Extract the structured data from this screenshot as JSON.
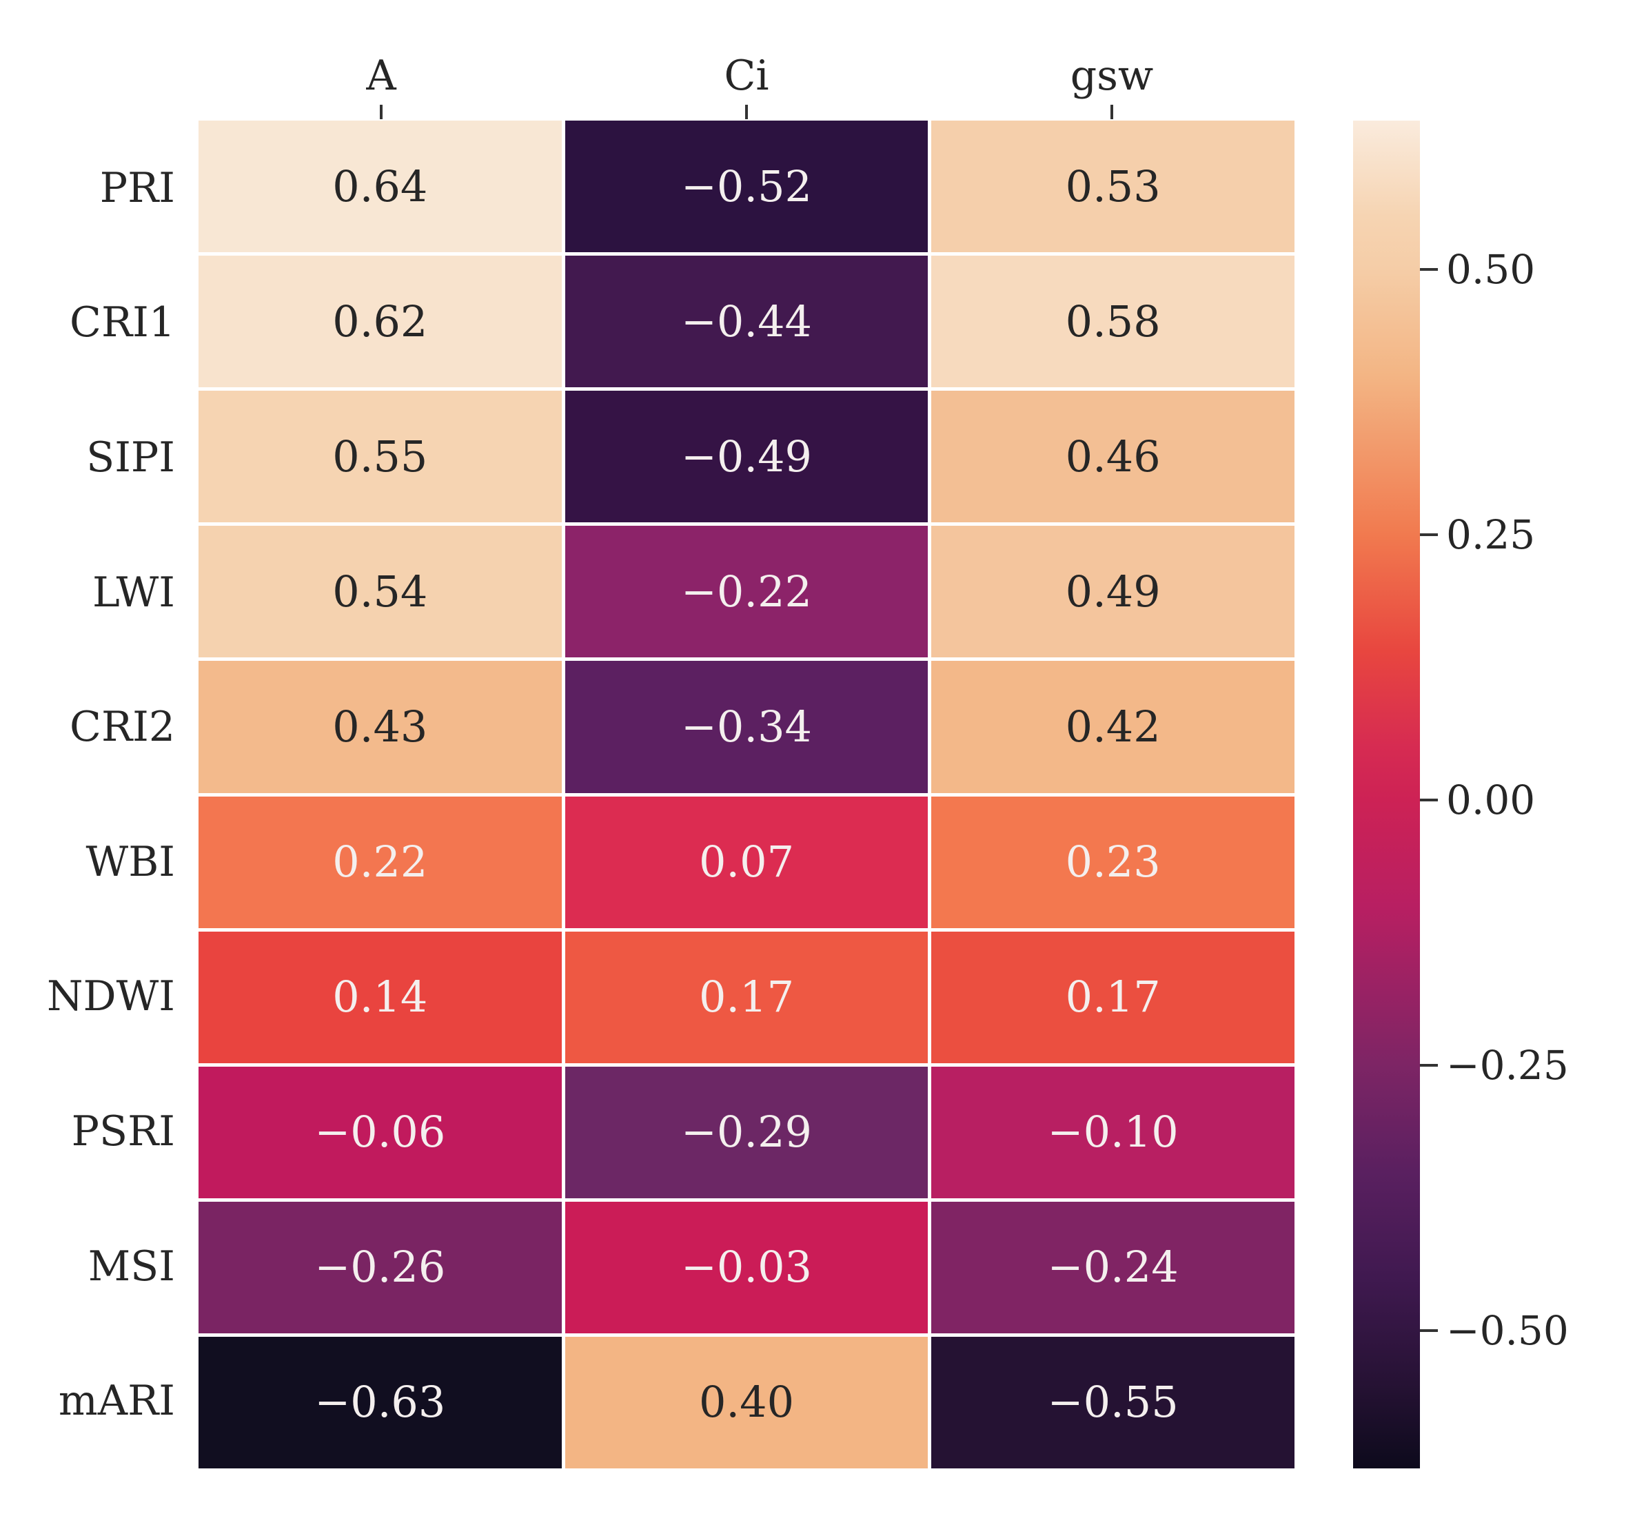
{
  "chart_data": {
    "type": "heatmap",
    "title": "",
    "colormap": "rocket",
    "rows": [
      "PRI",
      "CRI1",
      "SIPI",
      "LWI",
      "CRI2",
      "WBI",
      "NDWI",
      "PSRI",
      "MSI",
      "mARI"
    ],
    "columns": [
      "A",
      "Ci",
      "gsw"
    ],
    "values": [
      [
        0.64,
        -0.52,
        0.53
      ],
      [
        0.62,
        -0.44,
        0.58
      ],
      [
        0.55,
        -0.49,
        0.46
      ],
      [
        0.54,
        -0.22,
        0.49
      ],
      [
        0.43,
        -0.34,
        0.42
      ],
      [
        0.22,
        0.07,
        0.23
      ],
      [
        0.14,
        0.17,
        0.17
      ],
      [
        -0.06,
        -0.29,
        -0.1
      ],
      [
        -0.26,
        -0.03,
        -0.24
      ],
      [
        -0.63,
        0.4,
        -0.55
      ]
    ],
    "cell_labels": [
      [
        "0.64",
        "−0.52",
        "0.53"
      ],
      [
        "0.62",
        "−0.44",
        "0.58"
      ],
      [
        "0.55",
        "−0.49",
        "0.46"
      ],
      [
        "0.54",
        "−0.22",
        "0.49"
      ],
      [
        "0.43",
        "−0.34",
        "0.42"
      ],
      [
        "0.22",
        "0.07",
        "0.23"
      ],
      [
        "0.14",
        "0.17",
        "0.17"
      ],
      [
        "−0.06",
        "−0.29",
        "−0.10"
      ],
      [
        "−0.26",
        "−0.03",
        "−0.24"
      ],
      [
        "−0.63",
        "0.40",
        "−0.55"
      ]
    ],
    "cell_colors": [
      [
        "#f8e7d4",
        "#2c1240",
        "#f5cfab"
      ],
      [
        "#f8e3cd",
        "#42194f",
        "#f7dabe"
      ],
      [
        "#f6d4b2",
        "#351345",
        "#f3bf94"
      ],
      [
        "#f5d2af",
        "#8c2369",
        "#f4c59d"
      ],
      [
        "#f3ba8c",
        "#5c2061",
        "#f3b889"
      ],
      [
        "#f37650",
        "#dc2c51",
        "#f3784f"
      ],
      [
        "#e9443f",
        "#ee5843",
        "#eb4f40"
      ],
      [
        "#c11a5d",
        "#6c2765",
        "#b81f62"
      ],
      [
        "#7a2463",
        "#cb1c57",
        "#802464"
      ],
      [
        "#110e20",
        "#f3b584",
        "#251233"
      ]
    ],
    "annot_colors": {
      "dark": "#262626",
      "light": "#f4efee"
    },
    "annot_dark_threshold": 0.4,
    "colorbar": {
      "vmin": -0.63,
      "vmax": 0.64,
      "tick_labels": [
        "0.50",
        "0.25",
        "0.00",
        "−0.25",
        "−0.50"
      ],
      "tick_values": [
        0.5,
        0.25,
        0.0,
        -0.25,
        -0.5
      ],
      "gradient": [
        {
          "pos": 0.0,
          "color": "#faebdd"
        },
        {
          "pos": 0.071,
          "color": "#f6d4b2"
        },
        {
          "pos": 0.11,
          "color": "#f5cda7"
        },
        {
          "pos": 0.189,
          "color": "#f3b584"
        },
        {
          "pos": 0.307,
          "color": "#f17a4f"
        },
        {
          "pos": 0.394,
          "color": "#e8463f"
        },
        {
          "pos": 0.465,
          "color": "#d62b52"
        },
        {
          "pos": 0.504,
          "color": "#cd2255"
        },
        {
          "pos": 0.583,
          "color": "#b81f62"
        },
        {
          "pos": 0.701,
          "color": "#7d2565"
        },
        {
          "pos": 0.78,
          "color": "#5a2060"
        },
        {
          "pos": 0.858,
          "color": "#401950"
        },
        {
          "pos": 0.937,
          "color": "#261234"
        },
        {
          "pos": 1.0,
          "color": "#0d0a1c"
        }
      ]
    }
  }
}
